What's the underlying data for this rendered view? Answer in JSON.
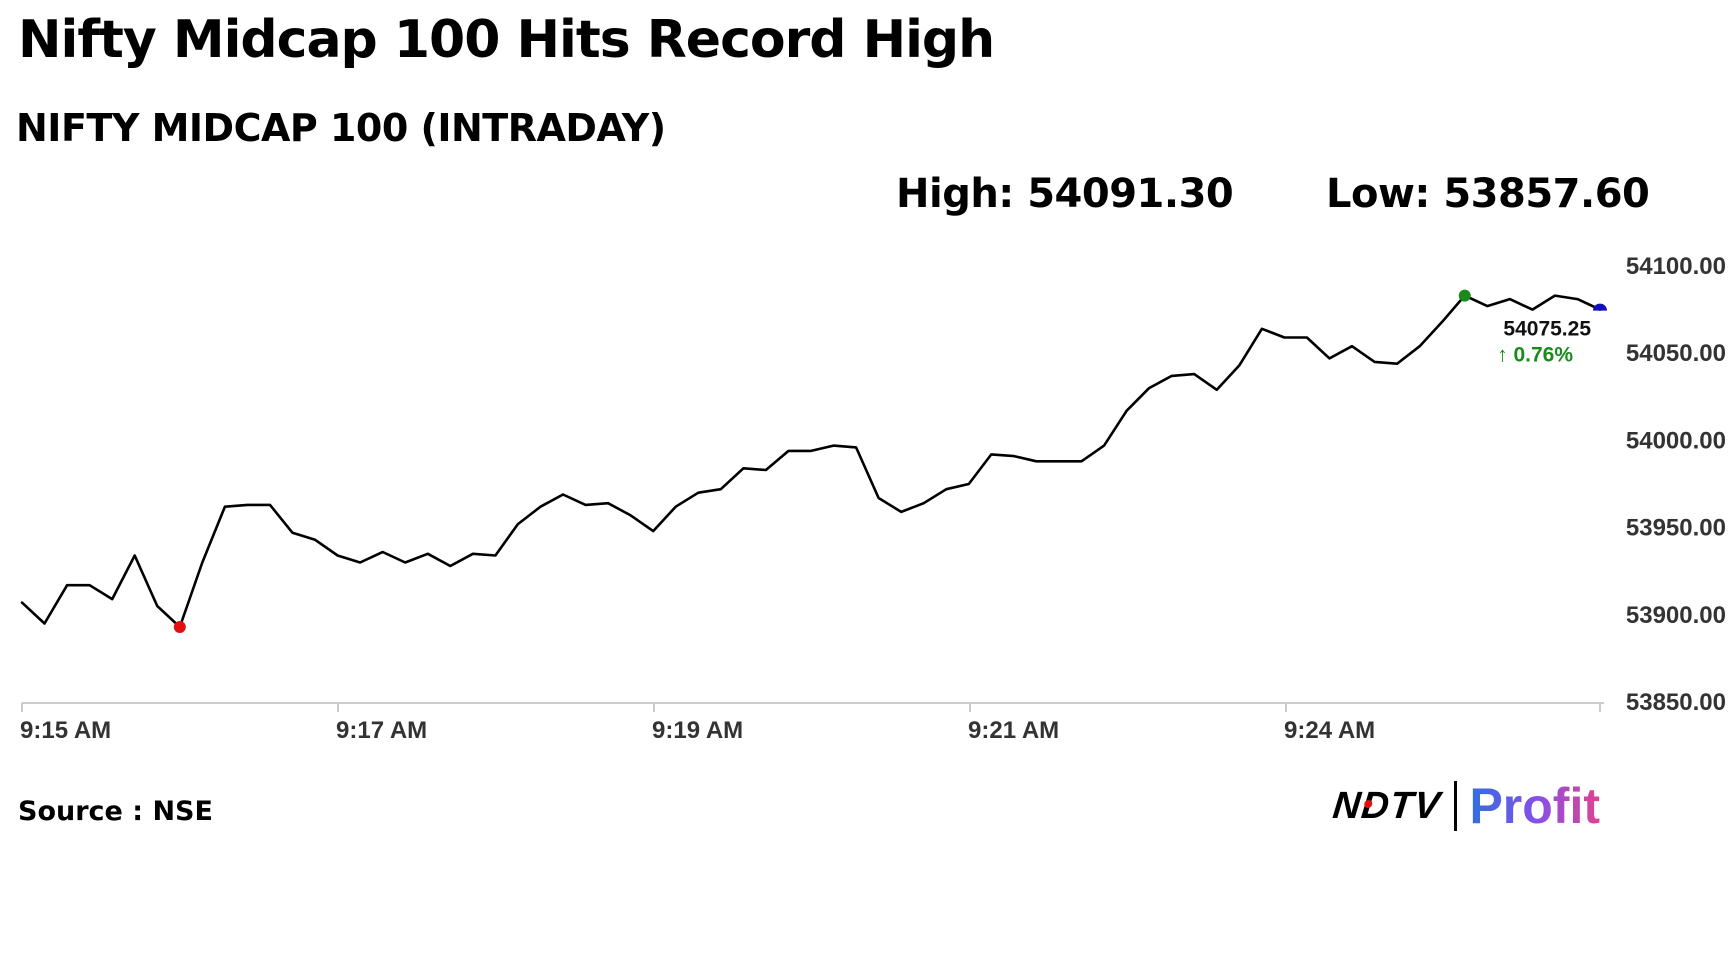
{
  "header": {
    "title": "Nifty Midcap 100 Hits Record High",
    "subtitle": "NIFTY MIDCAP 100 (INTRADAY)",
    "high_text": "High: 54091.30",
    "low_text": "Low: 53857.60"
  },
  "footer": {
    "source": "Source : NSE",
    "brand_left": "NDTV",
    "brand_right": "Profit"
  },
  "colors": {
    "line": "#000000",
    "high_marker": "#1a8a1a",
    "low_marker": "#e01010",
    "last_marker": "#1010c0",
    "change_up": "#1a8a1a",
    "axis": "#cccccc",
    "brand_red": "#e01010"
  },
  "chart_data": {
    "type": "line",
    "title": "NIFTY MIDCAP 100 (INTRADAY)",
    "xlabel": "",
    "ylabel": "",
    "x_tick_labels": [
      "9:15 AM",
      "9:17 AM",
      "9:19 AM",
      "9:21 AM",
      "9:24 AM"
    ],
    "y_ticks": [
      53850,
      53900,
      53950,
      54000,
      54050,
      54100
    ],
    "y_tick_labels": [
      "53850.00",
      "53900.00",
      "53950.00",
      "54000.00",
      "54050.00",
      "54100.00"
    ],
    "ylim": [
      53850,
      54100
    ],
    "grid": false,
    "series": [
      {
        "values": [
          53907,
          53895,
          53917,
          53917,
          53909,
          53934,
          53905,
          53893,
          53930,
          53962,
          53963,
          53963,
          53947,
          53943,
          53934,
          53930,
          53936,
          53930,
          53935,
          53928,
          53935,
          53934,
          53952,
          53962,
          53969,
          53963,
          53964,
          53957,
          53948,
          53962,
          53970,
          53972,
          53984,
          53983,
          53994,
          53994,
          53997,
          53996,
          53967,
          53959,
          53964,
          53972,
          53975,
          53992,
          53991,
          53988,
          53988,
          53988,
          53997,
          54017,
          54030,
          54037,
          54038,
          54029,
          54043,
          54064,
          54059,
          54059,
          54047,
          54054,
          54045,
          54044,
          54054,
          54068,
          54083,
          54077,
          54081,
          54075,
          54083,
          54081,
          54075
        ]
      }
    ],
    "markers": {
      "high_index": 64,
      "low_index": 7,
      "last_index": 70
    },
    "last_value_label": "54075.25",
    "change_label": "↑ 0.76%",
    "change_direction": "up"
  }
}
